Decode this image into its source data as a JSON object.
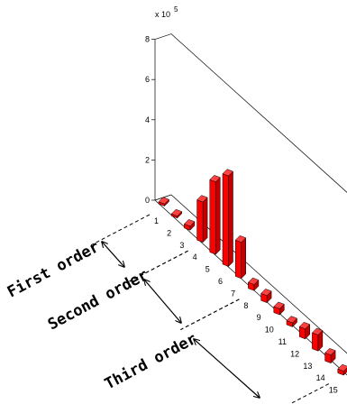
{
  "chart_data": {
    "type": "bar",
    "categories": [
      "1",
      "2",
      "3",
      "4",
      "5",
      "6",
      "7",
      "8",
      "9",
      "10",
      "11",
      "12",
      "13",
      "14",
      "15"
    ],
    "values": [
      0.1,
      0.1,
      0.2,
      2.0,
      3.6,
      4.5,
      1.8,
      0.3,
      0.35,
      0.3,
      0.2,
      0.5,
      0.8,
      0.4,
      0.2
    ],
    "scale_label": "x 10",
    "scale_exponent": "5",
    "zlim": [
      0,
      8
    ],
    "z_ticks": [
      "0",
      "2",
      "4",
      "6",
      "8"
    ],
    "bar_color": "#ff0000",
    "grid": false,
    "annotations": [
      {
        "label": "First order",
        "from_category": "1",
        "to_category": "4"
      },
      {
        "label": "Second order",
        "from_category": "4",
        "to_category": "8"
      },
      {
        "label": "Third order",
        "from_category": "8",
        "to_category": "15"
      }
    ]
  }
}
